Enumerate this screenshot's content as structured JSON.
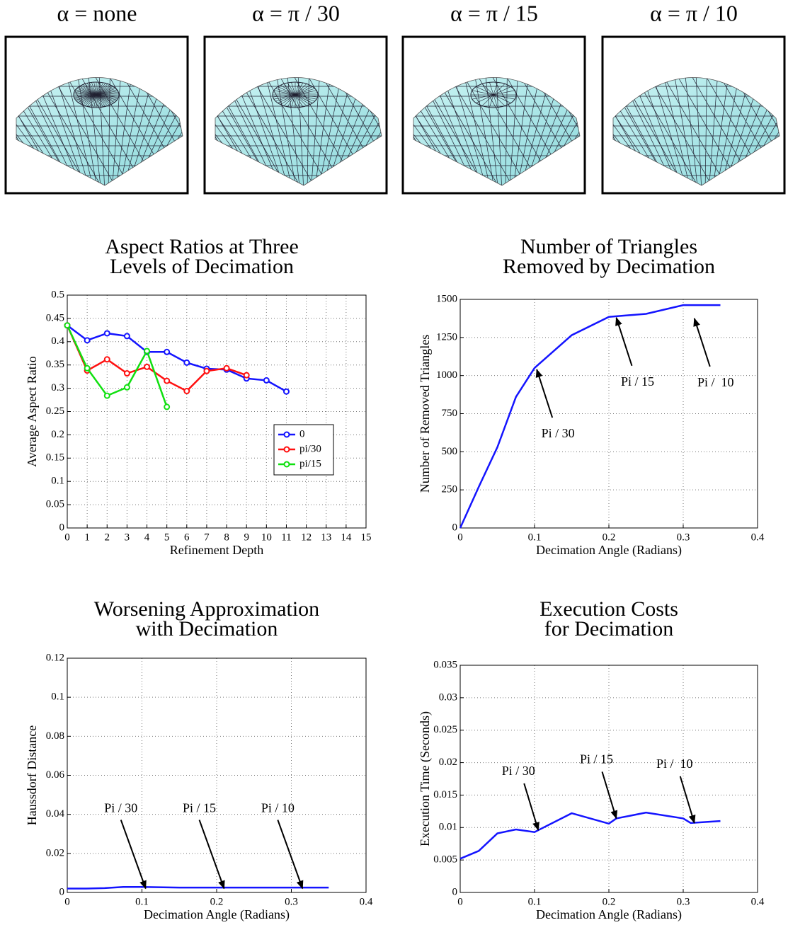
{
  "panels": [
    {
      "label": "α = none"
    },
    {
      "label": "α = π / 30"
    },
    {
      "label": "α = π / 15"
    },
    {
      "label": "α = π / 10"
    }
  ],
  "chart_data": [
    {
      "type": "line",
      "title": [
        "Aspect Ratios at Three",
        "Levels of Decimation"
      ],
      "xlabel": "Refinement Depth",
      "ylabel": "Average Aspect Ratio",
      "xlim": [
        0,
        15
      ],
      "xticks": [
        0,
        1,
        2,
        3,
        4,
        5,
        6,
        7,
        8,
        9,
        10,
        11,
        12,
        13,
        14,
        15
      ],
      "ylim": [
        0,
        0.5
      ],
      "yticks": [
        0,
        0.05,
        0.1,
        0.15,
        0.2,
        0.25,
        0.3,
        0.35,
        0.4,
        0.45,
        0.5
      ],
      "grid": true,
      "markers": true,
      "legend": "center-right",
      "series": [
        {
          "name": "0",
          "color": "#1414ff",
          "x": [
            0,
            1,
            2,
            3,
            4,
            5,
            6,
            7,
            8,
            9,
            10,
            11
          ],
          "values": [
            0.435,
            0.403,
            0.418,
            0.412,
            0.378,
            0.378,
            0.355,
            0.342,
            0.34,
            0.321,
            0.317,
            0.293
          ]
        },
        {
          "name": "pi/30",
          "color": "#ff1010",
          "x": [
            0,
            1,
            2,
            3,
            4,
            5,
            6,
            7,
            8,
            9
          ],
          "values": [
            0.435,
            0.338,
            0.362,
            0.332,
            0.346,
            0.316,
            0.294,
            0.337,
            0.343,
            0.328
          ]
        },
        {
          "name": "pi/15",
          "color": "#10e010",
          "x": [
            0,
            1,
            2,
            3,
            4,
            5
          ],
          "values": [
            0.435,
            0.343,
            0.284,
            0.302,
            0.38,
            0.26
          ]
        }
      ]
    },
    {
      "type": "line",
      "title": [
        "Number of Triangles",
        "Removed by Decimation"
      ],
      "xlabel": "Decimation Angle (Radians)",
      "ylabel": "Number of Removed Triangles",
      "xlim": [
        0,
        0.4
      ],
      "xticks": [
        0,
        0.1,
        0.2,
        0.3,
        0.4
      ],
      "ylim": [
        0,
        1500
      ],
      "yticks": [
        0,
        250,
        500,
        750,
        1000,
        1250,
        1500
      ],
      "grid": true,
      "series": [
        {
          "color": "#1414ff",
          "x": [
            0,
            0.025,
            0.05,
            0.075,
            0.1,
            0.15,
            0.2,
            0.25,
            0.3,
            0.35
          ],
          "values": [
            0,
            270,
            530,
            860,
            1050,
            1265,
            1385,
            1405,
            1462,
            1462
          ]
        }
      ],
      "annotations": [
        {
          "text": "Pi / 30",
          "x": 0.103,
          "y": 1040
        },
        {
          "text": "Pi / 15",
          "x": 0.21,
          "y": 1380
        },
        {
          "text": "Pi /  10",
          "x": 0.315,
          "y": 1375
        }
      ]
    },
    {
      "type": "line",
      "title": [
        "Worsening Approximation",
        "with Decimation"
      ],
      "xlabel": "Decimation Angle (Radians)",
      "ylabel": "Haussdorf Distance",
      "xlim": [
        0,
        0.4
      ],
      "xticks": [
        0,
        0.1,
        0.2,
        0.3,
        0.4
      ],
      "ylim": [
        0,
        0.12
      ],
      "yticks": [
        0,
        0.02,
        0.04,
        0.06,
        0.08,
        0.1,
        0.12
      ],
      "grid": true,
      "series": [
        {
          "color": "#1414ff",
          "x": [
            0,
            0.025,
            0.05,
            0.075,
            0.1,
            0.15,
            0.2,
            0.25,
            0.3,
            0.35
          ],
          "values": [
            0.002,
            0.002,
            0.0022,
            0.0028,
            0.0028,
            0.0025,
            0.0025,
            0.0025,
            0.0025,
            0.0025
          ]
        }
      ],
      "annotations": [
        {
          "text": "Pi / 30",
          "x": 0.105,
          "y": 0.002
        },
        {
          "text": "Pi / 15",
          "x": 0.21,
          "y": 0.002
        },
        {
          "text": "Pi / 10",
          "x": 0.315,
          "y": 0.002
        }
      ]
    },
    {
      "type": "line",
      "title": [
        "Execution Costs",
        "for Decimation"
      ],
      "xlabel": "Decimation Angle (Radians)",
      "ylabel": "Execution Time (Seconds)",
      "xlim": [
        0,
        0.4
      ],
      "xticks": [
        0,
        0.1,
        0.2,
        0.3,
        0.4
      ],
      "ylim": [
        0,
        0.035
      ],
      "yticks": [
        0,
        0.005,
        0.01,
        0.015,
        0.02,
        0.025,
        0.03,
        0.035
      ],
      "grid": true,
      "series": [
        {
          "color": "#1414ff",
          "x": [
            0,
            0.025,
            0.05,
            0.075,
            0.1,
            0.15,
            0.2,
            0.21,
            0.25,
            0.3,
            0.31,
            0.35
          ],
          "values": [
            0.0052,
            0.0064,
            0.0091,
            0.0097,
            0.0093,
            0.0122,
            0.0106,
            0.0114,
            0.0123,
            0.0114,
            0.0107,
            0.011
          ]
        }
      ],
      "annotations": [
        {
          "text": "Pi / 30",
          "x": 0.105,
          "y": 0.0096
        },
        {
          "text": "Pi / 15",
          "x": 0.21,
          "y": 0.0114
        },
        {
          "text": "Pi /  10",
          "x": 0.315,
          "y": 0.0107
        }
      ]
    }
  ]
}
